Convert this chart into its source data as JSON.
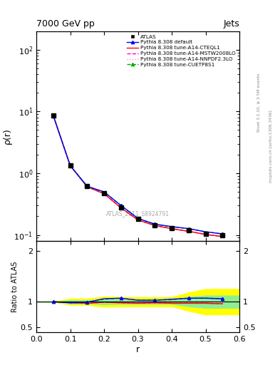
{
  "title_left": "7000 GeV pp",
  "title_right": "Jets",
  "right_label_top": "Rivet 3.1.10, ≥ 2.5M events",
  "right_label_bottom": "mcplots.cern.ch [arXiv:1306.3436]",
  "watermark": "ATLAS_2011_S8924791",
  "ylabel_main": "ρ(r)",
  "ylabel_ratio": "Ratio to ATLAS",
  "xlabel": "r",
  "atlas_x": [
    0.05,
    0.1,
    0.15,
    0.2,
    0.25,
    0.3,
    0.35,
    0.4,
    0.45,
    0.5,
    0.55
  ],
  "atlas_y": [
    8.5,
    1.35,
    0.62,
    0.47,
    0.28,
    0.18,
    0.145,
    0.13,
    0.118,
    0.105,
    0.098
  ],
  "ratio_default": [
    1.0,
    0.98,
    0.99,
    1.06,
    1.07,
    1.03,
    1.03,
    1.05,
    1.07,
    1.07,
    1.06
  ],
  "ratio_cteql1": [
    1.0,
    0.98,
    0.97,
    0.99,
    0.98,
    0.97,
    0.98,
    0.97,
    0.97,
    0.97,
    0.96
  ],
  "ratio_mstw": [
    1.0,
    0.98,
    0.97,
    0.99,
    0.98,
    0.97,
    0.98,
    0.97,
    0.97,
    0.97,
    0.96
  ],
  "ratio_nnpdf": [
    1.0,
    0.98,
    0.97,
    0.99,
    0.98,
    0.97,
    0.98,
    0.97,
    0.97,
    0.97,
    0.96
  ],
  "ratio_cuetp": [
    1.0,
    0.98,
    0.99,
    1.05,
    1.07,
    1.03,
    1.03,
    1.04,
    1.07,
    1.07,
    1.06
  ],
  "yellow_band_x": [
    0.0,
    0.05,
    0.1,
    0.15,
    0.2,
    0.25,
    0.3,
    0.35,
    0.4,
    0.45,
    0.5,
    0.55,
    0.6
  ],
  "yellow_upper": [
    1.0,
    1.0,
    1.06,
    1.06,
    1.1,
    1.09,
    1.09,
    1.09,
    1.09,
    1.18,
    1.25,
    1.25,
    1.25
  ],
  "yellow_lower": [
    1.0,
    1.0,
    0.94,
    0.94,
    0.9,
    0.91,
    0.91,
    0.91,
    0.91,
    0.82,
    0.75,
    0.75,
    0.75
  ],
  "green_band_x": [
    0.0,
    0.05,
    0.1,
    0.15,
    0.2,
    0.25,
    0.3,
    0.35,
    0.4,
    0.45,
    0.5,
    0.55,
    0.6
  ],
  "green_upper": [
    1.0,
    1.0,
    1.03,
    1.03,
    1.05,
    1.04,
    1.04,
    1.04,
    1.04,
    1.09,
    1.12,
    1.12,
    1.12
  ],
  "green_lower": [
    1.0,
    1.0,
    0.97,
    0.97,
    0.95,
    0.96,
    0.96,
    0.96,
    0.96,
    0.91,
    0.88,
    0.88,
    0.88
  ],
  "color_atlas": "#000000",
  "color_default": "#0000ff",
  "color_cteql1": "#ff0000",
  "color_mstw": "#ff00cc",
  "color_nnpdf": "#ff88ff",
  "color_cuetp": "#00aa00",
  "ylim_main": [
    0.08,
    200
  ],
  "ylim_ratio": [
    0.4,
    2.2
  ],
  "yticks_ratio": [
    0.5,
    1.0,
    2.0
  ],
  "xlim": [
    0.0,
    0.6
  ]
}
